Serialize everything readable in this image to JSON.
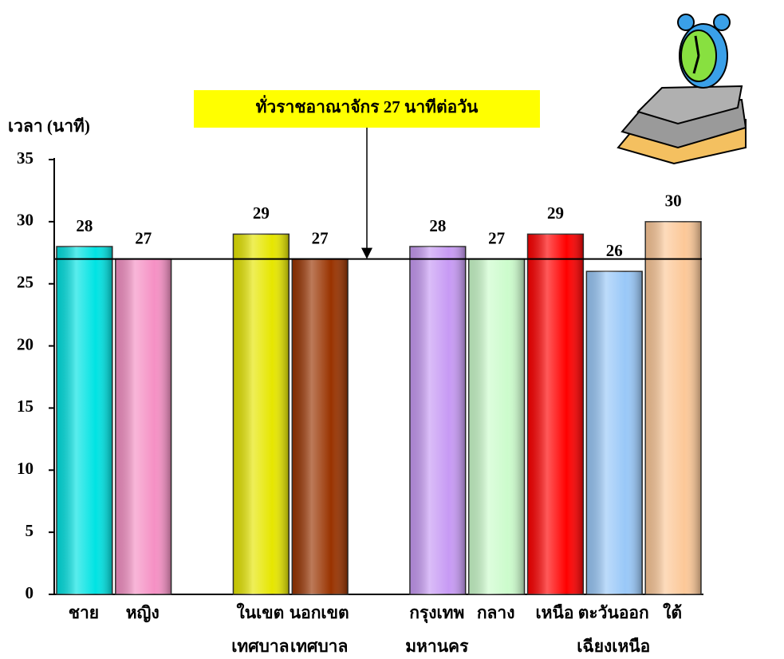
{
  "chart_data": {
    "type": "bar",
    "y_axis_title": "เวลา (นาที)",
    "annotation": "ทั่วราชอาณาจักร 27 นาทีต่อวัน",
    "reference_value": 27,
    "categories": [
      [
        "ชาย"
      ],
      [
        "หญิง"
      ],
      null,
      [
        "ในเขต",
        "เทศบาล"
      ],
      [
        "นอกเขต",
        "เทศบาล"
      ],
      null,
      [
        "กรุงเทพ",
        "มหานคร"
      ],
      [
        "กลาง"
      ],
      [
        "เหนือ"
      ],
      [
        "ตะวันออก",
        "เฉียงเหนือ"
      ],
      [
        "ใต้"
      ]
    ],
    "values": [
      28,
      27,
      null,
      29,
      27,
      null,
      28,
      27,
      29,
      26,
      30
    ],
    "colors": [
      "#00e3e3",
      "#f590c4",
      null,
      "#e6e600",
      "#993300",
      null,
      "#c79af4",
      "#ccfccc",
      "#ff0000",
      "#99c8f8",
      "#fcc898"
    ],
    "ylim": [
      0,
      35
    ],
    "yticks": [
      0,
      5,
      10,
      15,
      20,
      25,
      30,
      35
    ]
  }
}
